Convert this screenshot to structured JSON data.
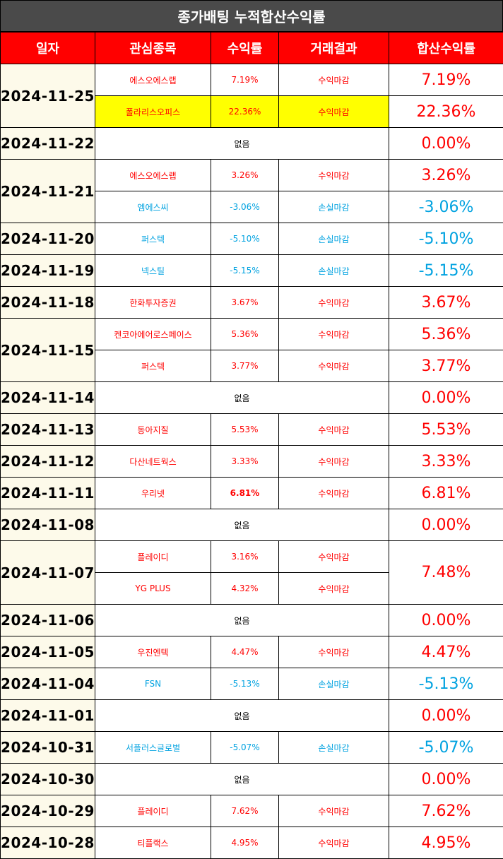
{
  "title": "종가배팅 누적합산수익률",
  "headers": [
    "일자",
    "관심종목",
    "수익률",
    "거래결과",
    "합산수익률"
  ],
  "none_label": "없음",
  "colors": {
    "positive": "#ff0000",
    "negative": "#00a2e0",
    "header_bg": "#ff0000",
    "title_bg": "#4a4a4a",
    "date_bg": "#fdfaea",
    "highlight": "#ffff00"
  },
  "days": [
    {
      "date": "2024-11-25",
      "trades": [
        {
          "stock": "에스오에스랩",
          "ret": "7.19%",
          "result": "수익마감",
          "total": "7.19%",
          "sign": "pos"
        },
        {
          "stock": "폴라리스오피스",
          "ret": "22.36%",
          "result": "수익마감",
          "total": "22.36%",
          "sign": "pos",
          "highlight": true
        }
      ]
    },
    {
      "date": "2024-11-22",
      "none": true,
      "total": "0.00%",
      "sign": "pos"
    },
    {
      "date": "2024-11-21",
      "trades": [
        {
          "stock": "에스오에스랩",
          "ret": "3.26%",
          "result": "수익마감",
          "total": "3.26%",
          "sign": "pos"
        },
        {
          "stock": "엠에스씨",
          "ret": "-3.06%",
          "result": "손실마감",
          "total": "-3.06%",
          "sign": "neg"
        }
      ]
    },
    {
      "date": "2024-11-20",
      "trades": [
        {
          "stock": "퍼스텍",
          "ret": "-5.10%",
          "result": "손실마감",
          "total": "-5.10%",
          "sign": "neg"
        }
      ]
    },
    {
      "date": "2024-11-19",
      "trades": [
        {
          "stock": "넥스틸",
          "ret": "-5.15%",
          "result": "손실마감",
          "total": "-5.15%",
          "sign": "neg"
        }
      ]
    },
    {
      "date": "2024-11-18",
      "trades": [
        {
          "stock": "한화투자증권",
          "ret": "3.67%",
          "result": "수익마감",
          "total": "3.67%",
          "sign": "pos"
        }
      ]
    },
    {
      "date": "2024-11-15",
      "trades": [
        {
          "stock": "켄코아에어로스페이스",
          "ret": "5.36%",
          "result": "수익마감",
          "total": "5.36%",
          "sign": "pos"
        },
        {
          "stock": "퍼스텍",
          "ret": "3.77%",
          "result": "수익마감",
          "total": "3.77%",
          "sign": "pos"
        }
      ]
    },
    {
      "date": "2024-11-14",
      "none": true,
      "total": "0.00%",
      "sign": "pos"
    },
    {
      "date": "2024-11-13",
      "trades": [
        {
          "stock": "동아지질",
          "ret": "5.53%",
          "result": "수익마감",
          "total": "5.53%",
          "sign": "pos"
        }
      ]
    },
    {
      "date": "2024-11-12",
      "trades": [
        {
          "stock": "다산네트웍스",
          "ret": "3.33%",
          "result": "수익마감",
          "total": "3.33%",
          "sign": "pos"
        }
      ]
    },
    {
      "date": "2024-11-11",
      "trades": [
        {
          "stock": "우리넷",
          "ret": "6.81%",
          "result": "수익마감",
          "total": "6.81%",
          "sign": "pos",
          "bold_ret": true
        }
      ]
    },
    {
      "date": "2024-11-08",
      "none": true,
      "total": "0.00%",
      "sign": "pos"
    },
    {
      "date": "2024-11-07",
      "merged_total": "7.48%",
      "trades": [
        {
          "stock": "플레이디",
          "ret": "3.16%",
          "result": "수익마감",
          "sign": "pos"
        },
        {
          "stock": "YG PLUS",
          "ret": "4.32%",
          "result": "수익마감",
          "sign": "pos"
        }
      ]
    },
    {
      "date": "2024-11-06",
      "none": true,
      "total": "0.00%",
      "sign": "pos"
    },
    {
      "date": "2024-11-05",
      "trades": [
        {
          "stock": "우진엔텍",
          "ret": "4.47%",
          "result": "수익마감",
          "total": "4.47%",
          "sign": "pos"
        }
      ]
    },
    {
      "date": "2024-11-04",
      "trades": [
        {
          "stock": "FSN",
          "ret": "-5.13%",
          "result": "손실마감",
          "total": "-5.13%",
          "sign": "neg"
        }
      ]
    },
    {
      "date": "2024-11-01",
      "none": true,
      "total": "0.00%",
      "sign": "pos"
    },
    {
      "date": "2024-10-31",
      "trades": [
        {
          "stock": "서플러스글로벌",
          "ret": "-5.07%",
          "result": "손실마감",
          "total": "-5.07%",
          "sign": "neg"
        }
      ]
    },
    {
      "date": "2024-10-30",
      "none": true,
      "total": "0.00%",
      "sign": "pos"
    },
    {
      "date": "2024-10-29",
      "trades": [
        {
          "stock": "플레이디",
          "ret": "7.62%",
          "result": "수익마감",
          "total": "7.62%",
          "sign": "pos"
        }
      ]
    },
    {
      "date": "2024-10-28",
      "trades": [
        {
          "stock": "티플랙스",
          "ret": "4.95%",
          "result": "수익마감",
          "total": "4.95%",
          "sign": "pos"
        }
      ]
    }
  ]
}
